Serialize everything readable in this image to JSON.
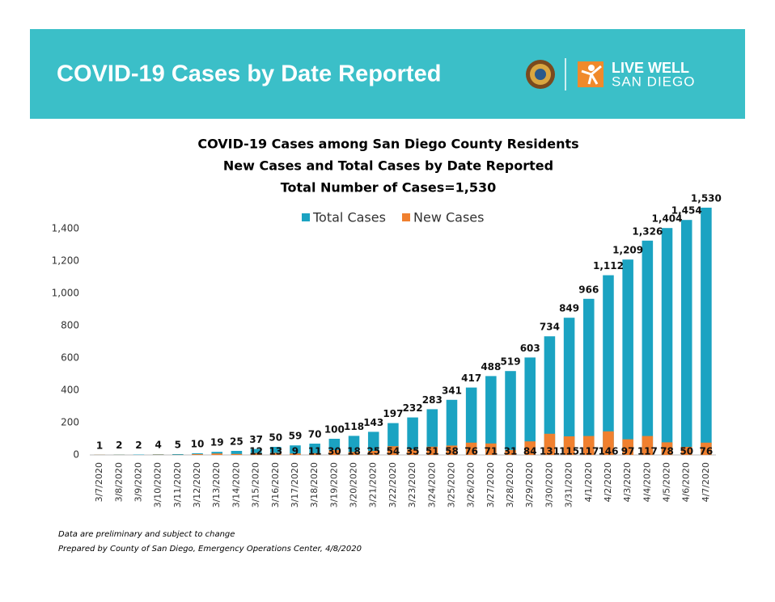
{
  "header": {
    "title": "COVID-19 Cases by Date Reported",
    "logo_line1": "LIVE WELL",
    "logo_line2": "SAN DIEGO"
  },
  "chart_data": {
    "type": "bar",
    "title": [
      "COVID-19 Cases among San Diego County Residents",
      "New Cases and Total Cases by Date Reported",
      "Total Number of Cases=1,530"
    ],
    "categories": [
      "3/7/2020",
      "3/8/2020",
      "3/9/2020",
      "3/10/2020",
      "3/11/2020",
      "3/12/2020",
      "3/13/2020",
      "3/14/2020",
      "3/15/2020",
      "3/16/2020",
      "3/17/2020",
      "3/18/2020",
      "3/19/2020",
      "3/20/2020",
      "3/21/2020",
      "3/22/2020",
      "3/23/2020",
      "3/24/2020",
      "3/25/2020",
      "3/26/2020",
      "3/27/2020",
      "3/28/2020",
      "3/29/2020",
      "3/30/2020",
      "3/31/2020",
      "4/1/2020",
      "4/2/2020",
      "4/3/2020",
      "4/4/2020",
      "4/5/2020",
      "4/6/2020",
      "4/7/2020"
    ],
    "series": [
      {
        "name": "Total Cases",
        "color": "#1ba3c2",
        "values": [
          1,
          2,
          2,
          4,
          5,
          10,
          19,
          25,
          37,
          50,
          59,
          70,
          100,
          118,
          143,
          197,
          232,
          283,
          341,
          417,
          488,
          519,
          603,
          734,
          849,
          966,
          1112,
          1209,
          1326,
          1404,
          1454,
          1530
        ],
        "value_labels": [
          "1",
          "2",
          "2",
          "4",
          "5",
          "10",
          "19",
          "25",
          "37",
          "50",
          "59",
          "70",
          "100",
          "118",
          "143",
          "197",
          "232",
          "283",
          "341",
          "417",
          "488",
          "519",
          "603",
          "734",
          "849",
          "966",
          "1,112",
          "1,209",
          "1,326",
          "1,404",
          "1,454",
          "1,530"
        ]
      },
      {
        "name": "New Cases",
        "color": "#f0802f",
        "values": [
          1,
          1,
          0,
          2,
          1,
          5,
          9,
          6,
          12,
          13,
          9,
          11,
          30,
          18,
          25,
          54,
          35,
          51,
          58,
          76,
          71,
          31,
          84,
          131,
          115,
          117,
          146,
          97,
          117,
          78,
          50,
          76
        ],
        "value_labels": [
          null,
          null,
          null,
          null,
          null,
          null,
          null,
          null,
          "12",
          "13",
          "9",
          "11",
          "30",
          "18",
          "25",
          "54",
          "35",
          "51",
          "58",
          "76",
          "71",
          "31",
          "84",
          "131",
          "115",
          "117",
          "146",
          "97",
          "117",
          "78",
          "50",
          "76"
        ]
      }
    ],
    "ylim": [
      0,
      1600
    ],
    "yticks": [
      0,
      200,
      400,
      600,
      800,
      {
        "value": 1000,
        "label": "1,000"
      },
      {
        "value": 1200,
        "label": "1,200"
      },
      {
        "value": 1400,
        "label": "1,400"
      }
    ],
    "grid": false,
    "legend": "top"
  },
  "notes": [
    "Data are preliminary and subject to change",
    "Prepared by County of San Diego, Emergency Operations Center, 4/8/2020"
  ]
}
